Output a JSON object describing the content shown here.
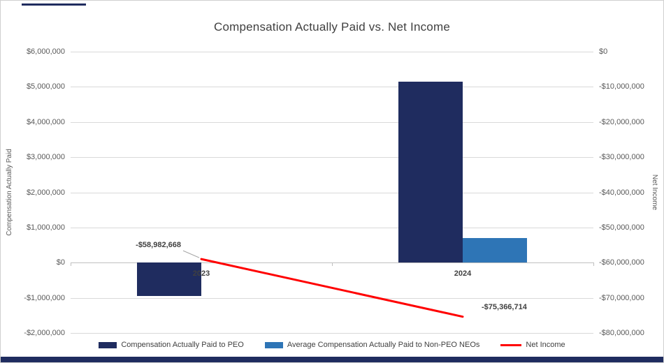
{
  "chart_data": {
    "type": "combo",
    "title": "Compensation Actually Paid vs. Net Income",
    "categories": [
      "2023",
      "2024"
    ],
    "series": [
      {
        "name": "Compensation Actually Paid to PEO",
        "chart_type": "bar",
        "axis": "left",
        "color": "#1F2C5F",
        "values": [
          -950000,
          5150000
        ]
      },
      {
        "name": "Average Compensation Actually Paid to Non-PEO NEOs",
        "chart_type": "bar",
        "axis": "left",
        "color": "#2E75B6",
        "values": [
          0,
          700000
        ]
      },
      {
        "name": "Net Income",
        "chart_type": "line",
        "axis": "right",
        "color": "#FF0000",
        "values": [
          -58982668,
          -75366714
        ],
        "data_labels": [
          "-$58,982,668",
          "-$75,366,714"
        ]
      }
    ],
    "left_axis": {
      "title": "Compensation Actually Paid",
      "min": -2000000,
      "max": 6000000,
      "tick_labels": [
        "$6,000,000",
        "$5,000,000",
        "$4,000,000",
        "$3,000,000",
        "$2,000,000",
        "$1,000,000",
        "$0",
        "-$1,000,000",
        "-$2,000,000"
      ]
    },
    "right_axis": {
      "title": "Net Income",
      "min": -80000000,
      "max": 0,
      "tick_labels": [
        "$0",
        "-$10,000,000",
        "-$20,000,000",
        "-$30,000,000",
        "-$40,000,000",
        "-$50,000,000",
        "-$60,000,000",
        "-$70,000,000",
        "-$80,000,000"
      ]
    },
    "legend_position": "bottom",
    "gridlines": true
  },
  "colors": {
    "gridline": "#D9D9D9",
    "axis_line": "#BFBFBF",
    "tick_text": "#595959",
    "title_text": "#404040",
    "label_text": "#404040",
    "leader_line": "#A6A6A6",
    "bottom_strip": "#1F2C5F",
    "top_artifact": "#1F2C5F"
  }
}
